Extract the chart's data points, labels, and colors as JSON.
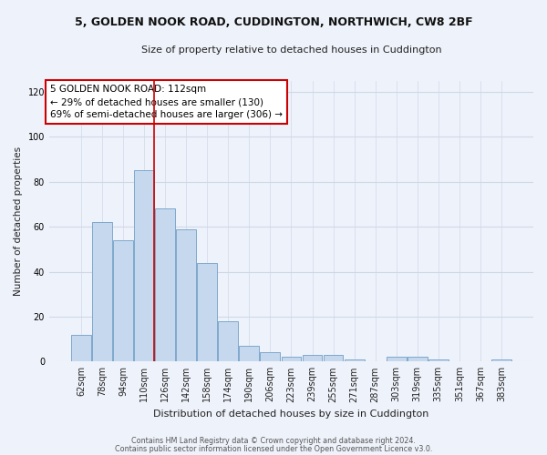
{
  "title_line1": "5, GOLDEN NOOK ROAD, CUDDINGTON, NORTHWICH, CW8 2BF",
  "title_line2": "Size of property relative to detached houses in Cuddington",
  "xlabel": "Distribution of detached houses by size in Cuddington",
  "ylabel": "Number of detached properties",
  "categories": [
    "62sqm",
    "78sqm",
    "94sqm",
    "110sqm",
    "126sqm",
    "142sqm",
    "158sqm",
    "174sqm",
    "190sqm",
    "206sqm",
    "223sqm",
    "239sqm",
    "255sqm",
    "271sqm",
    "287sqm",
    "303sqm",
    "319sqm",
    "335sqm",
    "351sqm",
    "367sqm",
    "383sqm"
  ],
  "values": [
    12,
    62,
    54,
    85,
    68,
    59,
    44,
    18,
    7,
    4,
    2,
    3,
    3,
    1,
    0,
    2,
    2,
    1,
    0,
    0,
    1
  ],
  "bar_color": "#c5d8ee",
  "bar_edge_color": "#7fa8cc",
  "bar_linewidth": 0.7,
  "vline_bin": 3,
  "vline_color": "#cc0000",
  "annotation_text": "5 GOLDEN NOOK ROAD: 112sqm\n← 29% of detached houses are smaller (130)\n69% of semi-detached houses are larger (306) →",
  "annotation_box_color": "#ffffff",
  "annotation_box_edge": "#cc0000",
  "ylim": [
    0,
    125
  ],
  "yticks": [
    0,
    20,
    40,
    60,
    80,
    100,
    120
  ],
  "grid_color": "#d0d8e8",
  "bg_color": "#eef2fa",
  "footer1": "Contains HM Land Registry data © Crown copyright and database right 2024.",
  "footer2": "Contains public sector information licensed under the Open Government Licence v3.0."
}
